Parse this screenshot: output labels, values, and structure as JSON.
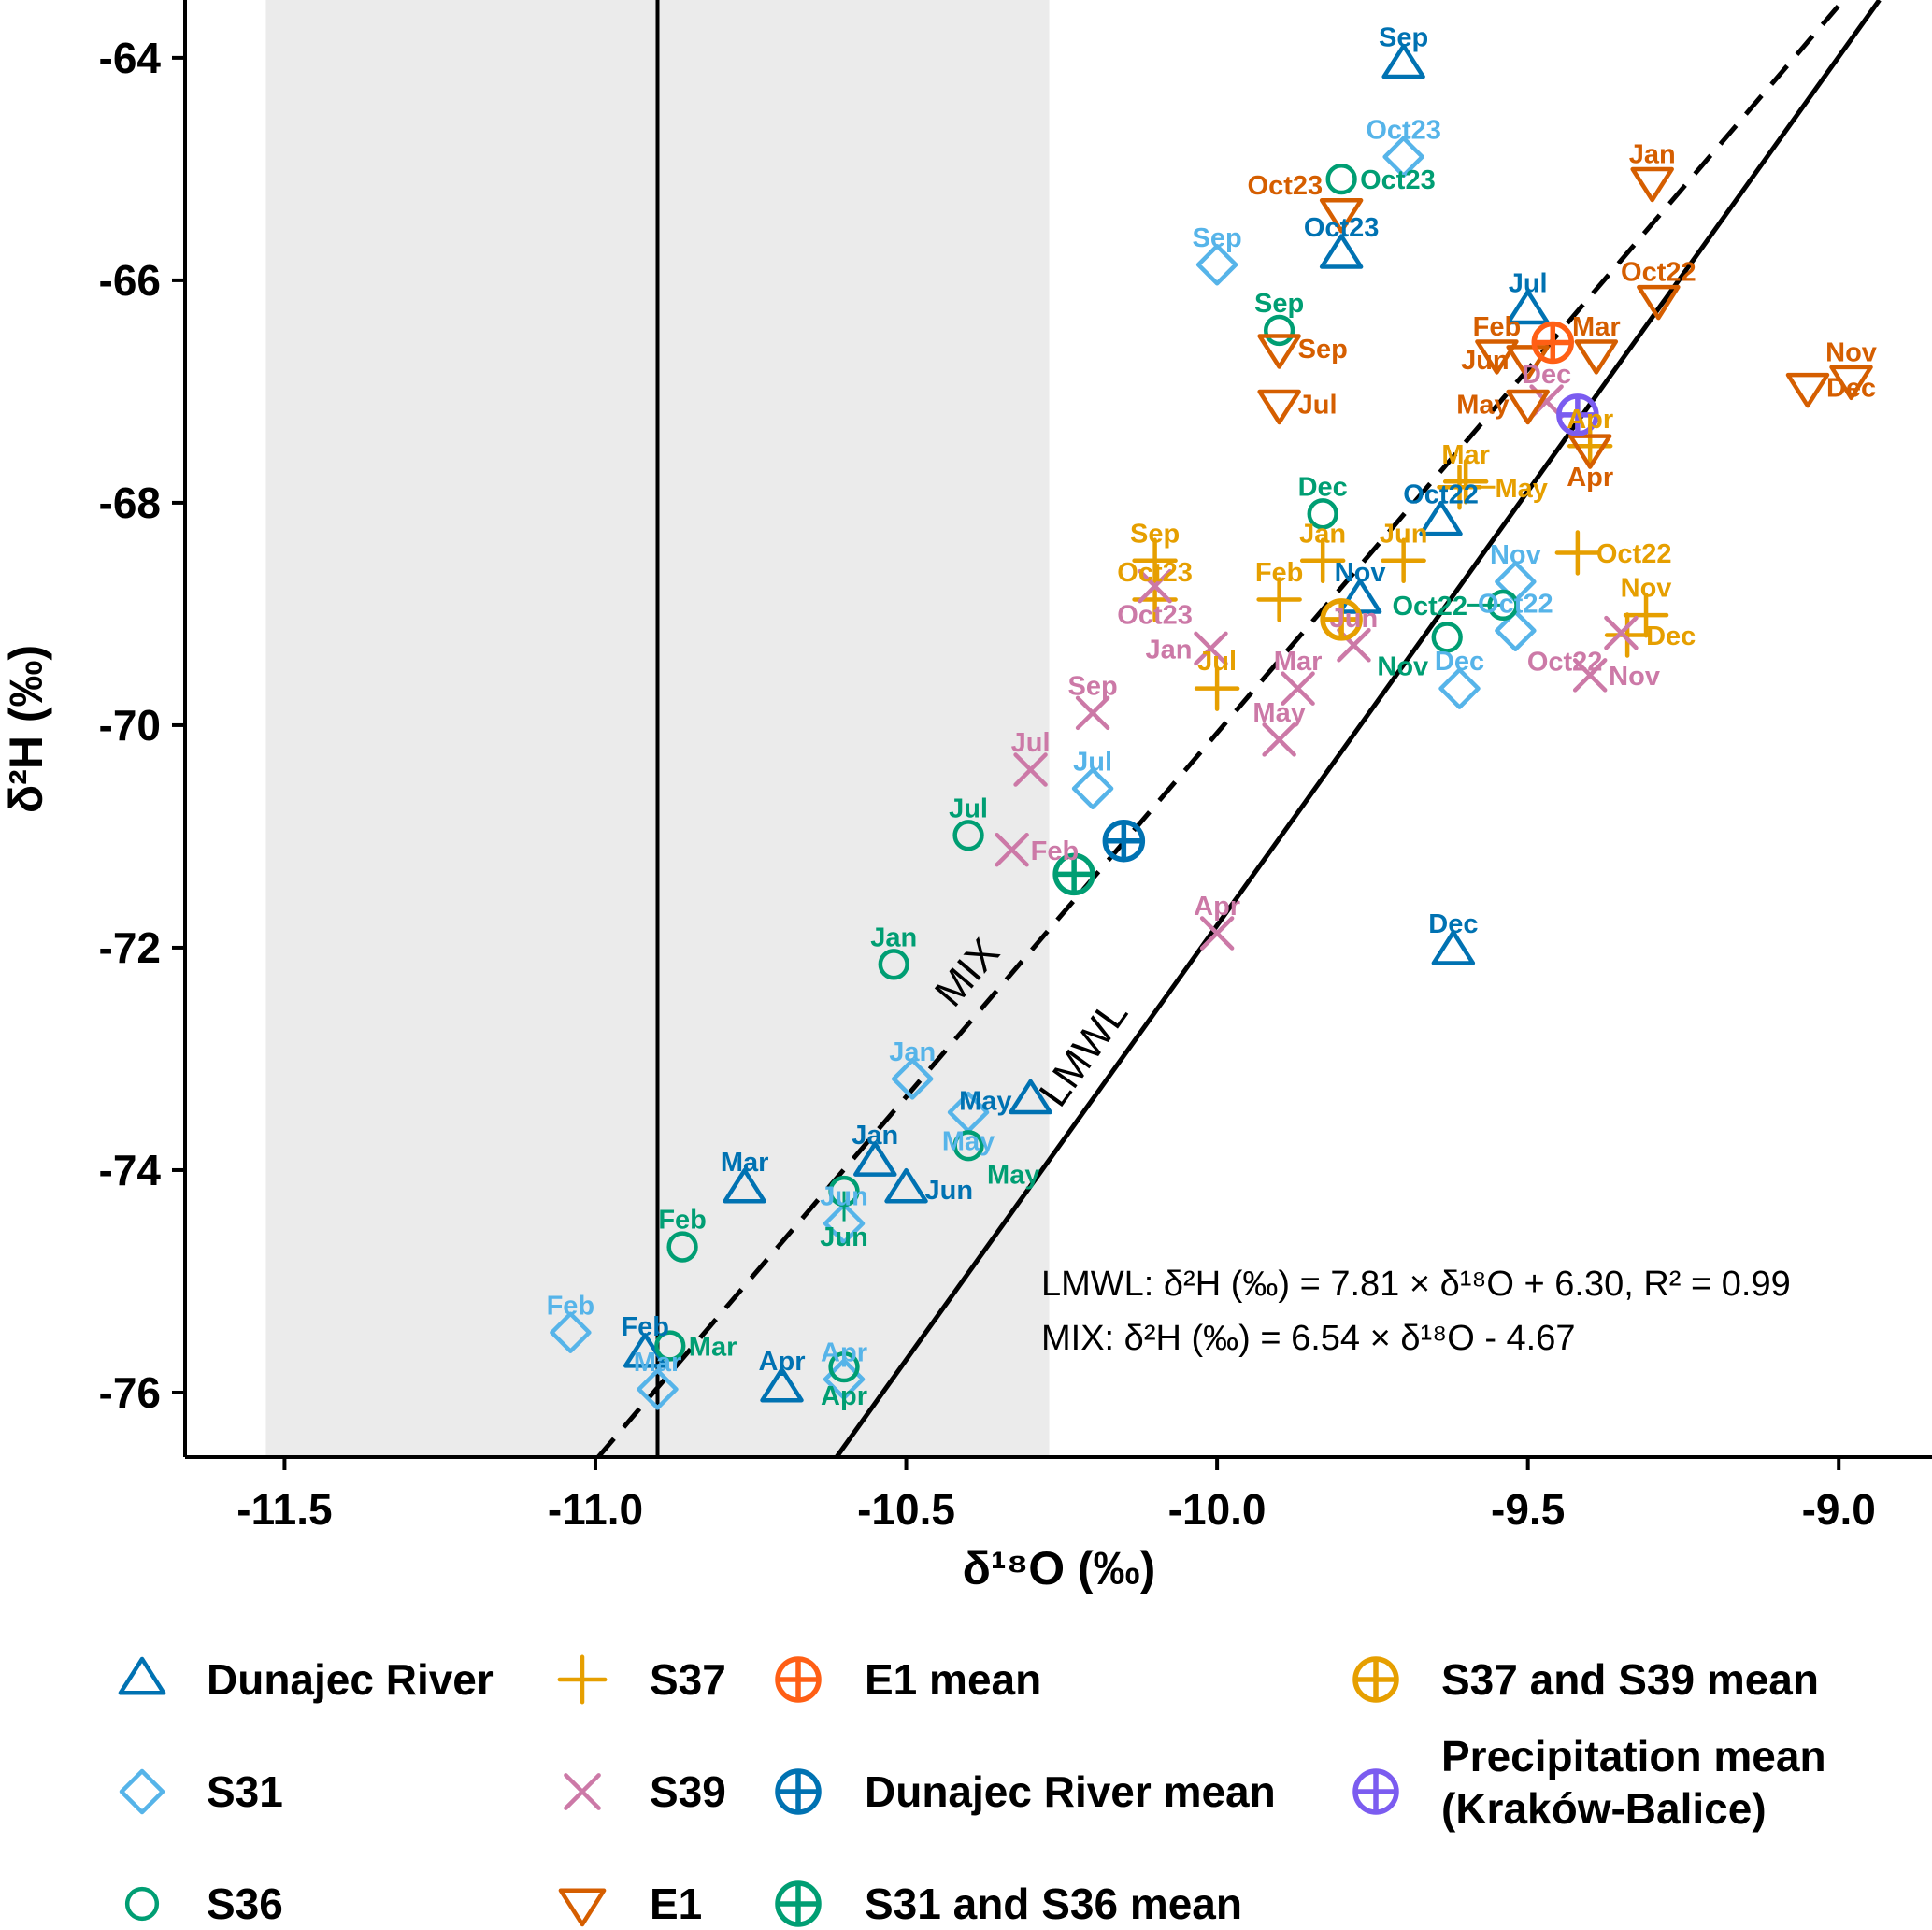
{
  "chart_data": {
    "type": "scatter",
    "xlabel": "δ¹⁸O (‰)",
    "ylabel": "δ²H (‰)",
    "xlim": [
      -11.66,
      -8.85
    ],
    "ylim": [
      -76.58,
      -63.48
    ],
    "grid": false,
    "xticks": [
      -11.5,
      -11.0,
      -10.5,
      -10.0,
      -9.5,
      -9.0
    ],
    "xtick_labels": [
      "-11.5",
      "-11.0",
      "-10.5",
      "-10.0",
      "-9.5",
      "-9.0"
    ],
    "yticks": [
      -64,
      -66,
      -68,
      -70,
      -72,
      -74,
      -76
    ],
    "ytick_labels": [
      "-64",
      "-66",
      "-68",
      "-70",
      "-72",
      "-74",
      "-76"
    ],
    "shaded_x_range": [
      -11.53,
      -10.27
    ],
    "vertical_line_x": -10.9,
    "lines": [
      {
        "name": "LMWL",
        "label": "LMWL",
        "slope": 7.81,
        "intercept": 6.3,
        "style": "solid",
        "equation": "LMWL: δ²H (‰) = 7.81 × δ¹⁸O + 6.30, R² = 0.99"
      },
      {
        "name": "MIX",
        "label": "MIX",
        "slope": 6.54,
        "intercept": -4.67,
        "style": "dashed",
        "equation": "MIX: δ²H (‰) = 6.54 × δ¹⁸O - 4.67"
      }
    ],
    "series": [
      {
        "name": "Dunajec River",
        "marker": "triangle",
        "color": "#0072B2",
        "points": [
          {
            "label": "Sep",
            "x": -9.7,
            "y": -64.06
          },
          {
            "label": "Oct23",
            "x": -9.8,
            "y": -65.77
          },
          {
            "label": "Jul",
            "x": -9.5,
            "y": -66.27
          },
          {
            "label": "Oct22",
            "x": -9.64,
            "y": -68.17
          },
          {
            "label": "Nov",
            "x": -9.77,
            "y": -68.87
          },
          {
            "label": "Dec",
            "x": -9.62,
            "y": -72.03
          },
          {
            "label": "May",
            "x": -10.3,
            "y": -73.37
          },
          {
            "label": "Jan",
            "x": -10.55,
            "y": -73.93
          },
          {
            "label": "Jun",
            "x": -10.5,
            "y": -74.17
          },
          {
            "label": "Mar",
            "x": -10.76,
            "y": -74.17
          },
          {
            "label": "Feb",
            "x": -10.92,
            "y": -75.65
          },
          {
            "label": "Apr",
            "x": -10.7,
            "y": -75.96
          }
        ]
      },
      {
        "name": "S31",
        "marker": "diamond",
        "color": "#56B4E9",
        "points": [
          {
            "label": "Oct23",
            "x": -9.7,
            "y": -64.89
          },
          {
            "label": "Sep",
            "x": -10.0,
            "y": -65.86
          },
          {
            "label": "Nov",
            "x": -9.52,
            "y": -68.71
          },
          {
            "label": "Oct22",
            "x": -9.52,
            "y": -69.15
          },
          {
            "label": "Dec",
            "x": -9.61,
            "y": -69.67
          },
          {
            "label": "Jul",
            "x": -10.2,
            "y": -70.57
          },
          {
            "label": "Jan",
            "x": -10.49,
            "y": -73.18
          },
          {
            "label": "May",
            "x": -10.4,
            "y": -73.48
          },
          {
            "label": "Jun",
            "x": -10.6,
            "y": -74.48
          },
          {
            "label": "Feb",
            "x": -11.04,
            "y": -75.46
          },
          {
            "label": "Apr",
            "x": -10.6,
            "y": -75.88
          },
          {
            "label": "Mar",
            "x": -10.9,
            "y": -75.97
          }
        ]
      },
      {
        "name": "S36",
        "marker": "circle",
        "color": "#009E73",
        "points": [
          {
            "label": "Oct23",
            "x": -9.8,
            "y": -65.09
          },
          {
            "label": "Sep",
            "x": -9.9,
            "y": -66.45
          },
          {
            "label": "Dec",
            "x": -9.83,
            "y": -68.1
          },
          {
            "label": "Oct22",
            "x": -9.54,
            "y": -68.92
          },
          {
            "label": "Nov",
            "x": -9.63,
            "y": -69.21
          },
          {
            "label": "Jul",
            "x": -10.4,
            "y": -70.99
          },
          {
            "label": "Jan",
            "x": -10.52,
            "y": -72.15
          },
          {
            "label": "May",
            "x": -10.4,
            "y": -73.78
          },
          {
            "label": "Jun",
            "x": -10.6,
            "y": -74.19
          },
          {
            "label": "Feb",
            "x": -10.86,
            "y": -74.69
          },
          {
            "label": "Mar",
            "x": -10.88,
            "y": -75.58
          },
          {
            "label": "Apr",
            "x": -10.6,
            "y": -75.77
          }
        ]
      },
      {
        "name": "S37",
        "marker": "plus",
        "color": "#E69F00",
        "points": [
          {
            "label": "Apr",
            "x": -9.4,
            "y": -67.49
          },
          {
            "label": "Mar",
            "x": -9.6,
            "y": -67.81
          },
          {
            "label": "May",
            "x": -9.61,
            "y": -67.86
          },
          {
            "label": "Oct22",
            "x": -9.42,
            "y": -68.45
          },
          {
            "label": "Sep",
            "x": -10.1,
            "y": -68.52
          },
          {
            "label": "Jan",
            "x": -9.83,
            "y": -68.52
          },
          {
            "label": "Jun",
            "x": -9.7,
            "y": -68.52
          },
          {
            "label": "Oct23",
            "x": -10.1,
            "y": -68.87
          },
          {
            "label": "Feb",
            "x": -9.9,
            "y": -68.87
          },
          {
            "label": "Nov",
            "x": -9.31,
            "y": -69.01
          },
          {
            "label": "Dec",
            "x": -9.34,
            "y": -69.19
          },
          {
            "label": "Jul",
            "x": -10.0,
            "y": -69.67
          }
        ]
      },
      {
        "name": "S39",
        "marker": "cross",
        "color": "#CC79A7",
        "points": [
          {
            "label": "Dec",
            "x": -9.47,
            "y": -67.09
          },
          {
            "label": "Oct23",
            "x": -10.1,
            "y": -68.75
          },
          {
            "label": "Oct22",
            "x": -9.35,
            "y": -69.17
          },
          {
            "label": "Jun",
            "x": -9.78,
            "y": -69.28
          },
          {
            "label": "Jan",
            "x": -10.01,
            "y": -69.31
          },
          {
            "label": "Nov",
            "x": -9.4,
            "y": -69.55
          },
          {
            "label": "Mar",
            "x": -9.87,
            "y": -69.67
          },
          {
            "label": "Sep",
            "x": -10.2,
            "y": -69.89
          },
          {
            "label": "May",
            "x": -9.9,
            "y": -70.13
          },
          {
            "label": "Jul",
            "x": -10.3,
            "y": -70.4
          },
          {
            "label": "Feb",
            "x": -10.33,
            "y": -71.12
          },
          {
            "label": "Apr",
            "x": -10.0,
            "y": -71.87
          }
        ]
      },
      {
        "name": "E1",
        "marker": "triangle-down",
        "color": "#D55E00",
        "points": [
          {
            "label": "Jan",
            "x": -9.3,
            "y": -65.11
          },
          {
            "label": "Oct23",
            "x": -9.8,
            "y": -65.39
          },
          {
            "label": "Oct22",
            "x": -9.29,
            "y": -66.17
          },
          {
            "label": "Sep",
            "x": -9.9,
            "y": -66.61
          },
          {
            "label": "Feb",
            "x": -9.55,
            "y": -66.66
          },
          {
            "label": "Mar",
            "x": -9.39,
            "y": -66.66
          },
          {
            "label": "Jun",
            "x": -9.5,
            "y": -66.71
          },
          {
            "label": "Nov",
            "x": -8.98,
            "y": -66.89
          },
          {
            "label": "Dec",
            "x": -9.05,
            "y": -66.96
          },
          {
            "label": "Jul",
            "x": -9.9,
            "y": -67.11
          },
          {
            "label": "May",
            "x": -9.5,
            "y": -67.11
          },
          {
            "label": "Apr",
            "x": -9.4,
            "y": -67.51
          }
        ]
      }
    ],
    "means": [
      {
        "name": "E1 mean",
        "color": "#FF5F15",
        "x": -9.46,
        "y": -66.56
      },
      {
        "name": "Precipitation mean (Kraków-Balice)",
        "color": "#7B5CF0",
        "x": -9.42,
        "y": -67.21
      },
      {
        "name": "S37 and S39 mean",
        "color": "#E69F00",
        "x": -9.8,
        "y": -69.05
      },
      {
        "name": "Dunajec River mean",
        "color": "#0072B2",
        "x": -10.15,
        "y": -71.04
      },
      {
        "name": "S31 and S36 mean",
        "color": "#009E73",
        "x": -10.23,
        "y": -71.34
      }
    ],
    "legend": {
      "placement": "bottom",
      "items": [
        {
          "label": "Dunajec River",
          "marker": "triangle",
          "color": "#0072B2"
        },
        {
          "label": "S31",
          "marker": "diamond",
          "color": "#56B4E9"
        },
        {
          "label": "S36",
          "marker": "circle",
          "color": "#009E73"
        },
        {
          "label": "S37",
          "marker": "plus",
          "color": "#E69F00"
        },
        {
          "label": "S39",
          "marker": "cross",
          "color": "#CC79A7"
        },
        {
          "label": "E1",
          "marker": "triangle-down",
          "color": "#D55E00"
        },
        {
          "label": "E1 mean",
          "marker": "circle-plus",
          "color": "#FF5F15"
        },
        {
          "label": "Dunajec River mean",
          "marker": "circle-plus",
          "color": "#0072B2"
        },
        {
          "label": "S31 and S36 mean",
          "marker": "circle-plus",
          "color": "#009E73"
        },
        {
          "label": "S37 and S39 mean",
          "marker": "circle-plus",
          "color": "#E69F00"
        },
        {
          "label": "Precipitation mean",
          "label2": "(Kraków-Balice)",
          "marker": "circle-plus",
          "color": "#7B5CF0"
        }
      ]
    }
  }
}
